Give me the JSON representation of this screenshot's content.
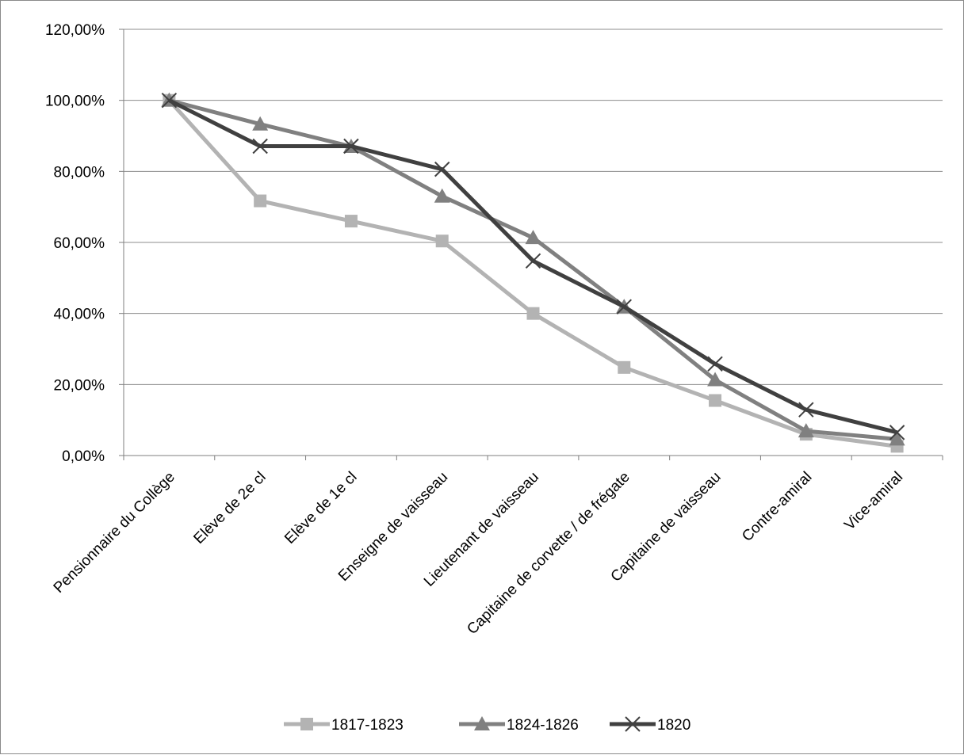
{
  "chart_data": {
    "type": "line",
    "categories": [
      "Pensionnaire du Collège",
      "Elève de 2e cl",
      "Elève de 1e cl",
      "Enseigne de vaisseau",
      "Lieutenant de vaisseau",
      "Capitaine de corvette / de frégate",
      "Capitaine de vaisseau",
      "Contre-amiral",
      "Vice-amiral"
    ],
    "series": [
      {
        "name": "1817-1823",
        "color": "#b3b3b3",
        "marker": "square",
        "values": [
          100.0,
          71.7,
          66.0,
          60.4,
          40.0,
          24.8,
          15.5,
          6.0,
          2.6
        ]
      },
      {
        "name": "1824-1826",
        "color": "#808080",
        "marker": "triangle",
        "values": [
          100.0,
          93.3,
          87.0,
          73.0,
          61.3,
          41.9,
          21.3,
          6.9,
          4.6
        ]
      },
      {
        "name": "1820",
        "color": "#404040",
        "marker": "x",
        "values": [
          100.0,
          87.1,
          87.1,
          80.6,
          54.8,
          41.9,
          25.8,
          12.9,
          6.5
        ]
      }
    ],
    "y_ticks": [
      "0,00%",
      "20,00%",
      "40,00%",
      "60,00%",
      "80,00%",
      "100,00%",
      "120,00%"
    ],
    "ylim": [
      0,
      120
    ],
    "y_step": 20,
    "grid": true,
    "legend_position": "bottom",
    "title": "",
    "xlabel": "",
    "ylabel": ""
  }
}
